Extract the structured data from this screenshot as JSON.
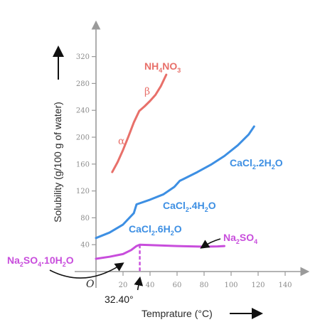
{
  "chart_data": {
    "type": "line",
    "xlabel": "Temprature (°C)",
    "ylabel": "Solubility (g/100 g of water)",
    "origin_label": "O",
    "xlim": [
      0,
      155
    ],
    "ylim": [
      0,
      360
    ],
    "xticks": [
      20,
      40,
      60,
      80,
      100,
      120,
      140
    ],
    "yticks": [
      40,
      80,
      120,
      160,
      200,
      240,
      280,
      320
    ],
    "grid": false,
    "colors": {
      "nh4no3": "#e8706a",
      "cacl2": "#3d8fe3",
      "na2so4": "#c84ddc",
      "axis": "#9a9a9a",
      "annotation": "#111111"
    },
    "series": [
      {
        "key": "nh4no3",
        "name": "NH4NO3",
        "label_parts": [
          [
            "NH",
            false
          ],
          [
            "4",
            true
          ],
          [
            "NO",
            false
          ],
          [
            "3",
            true
          ]
        ],
        "phase_labels": [
          "α",
          "β"
        ],
        "x": [
          12,
          16,
          20,
          24,
          28,
          32,
          36,
          40,
          44,
          48,
          52
        ],
        "y": [
          148,
          163,
          181,
          201,
          222,
          239,
          246,
          254,
          263,
          276,
          293
        ]
      },
      {
        "key": "cacl2",
        "name_segments": [
          "CaCl2.6H2O",
          "CaCl2.4H2O",
          "CaCl2.2H2O"
        ],
        "labels": [
          [
            [
              "CaCl",
              false
            ],
            [
              "2",
              true
            ],
            [
              ".6H",
              false
            ],
            [
              "2",
              true
            ],
            [
              "O",
              false
            ]
          ],
          [
            [
              "CaCl",
              false
            ],
            [
              "2",
              true
            ],
            [
              ".4H",
              false
            ],
            [
              "2",
              true
            ],
            [
              "O",
              false
            ]
          ],
          [
            [
              "CaCl",
              false
            ],
            [
              "2",
              true
            ],
            [
              ".2H",
              false
            ],
            [
              "2",
              true
            ],
            [
              "O",
              false
            ]
          ]
        ],
        "x": [
          0,
          10,
          20,
          28,
          30,
          40,
          50,
          58,
          62,
          65,
          75,
          85,
          95,
          105,
          113,
          117
        ],
        "y": [
          50,
          58,
          70,
          87,
          100,
          107,
          115,
          126,
          135,
          138,
          148,
          159,
          172,
          188,
          204,
          216
        ]
      },
      {
        "key": "na2so4",
        "name_segments": [
          "Na2SO4.10H2O",
          "Na2SO4"
        ],
        "labels": [
          [
            [
              "Na",
              false
            ],
            [
              "2",
              true
            ],
            [
              "SO",
              false
            ],
            [
              "4",
              true
            ],
            [
              ".10H",
              false
            ],
            [
              "2",
              true
            ],
            [
              "O",
              false
            ]
          ],
          [
            [
              "Na",
              false
            ],
            [
              "2",
              true
            ],
            [
              "SO",
              false
            ],
            [
              "4",
              true
            ]
          ]
        ],
        "x": [
          0,
          10,
          20,
          26,
          30,
          32.4,
          40,
          60,
          80,
          90,
          95
        ],
        "y": [
          19,
          22,
          26,
          32,
          38,
          40,
          39.5,
          38,
          37,
          37.5,
          38
        ]
      }
    ],
    "annotations": [
      {
        "text": "32.40°",
        "x": 32.4,
        "note": "transition temperature of Na2SO4.10H2O"
      }
    ]
  }
}
